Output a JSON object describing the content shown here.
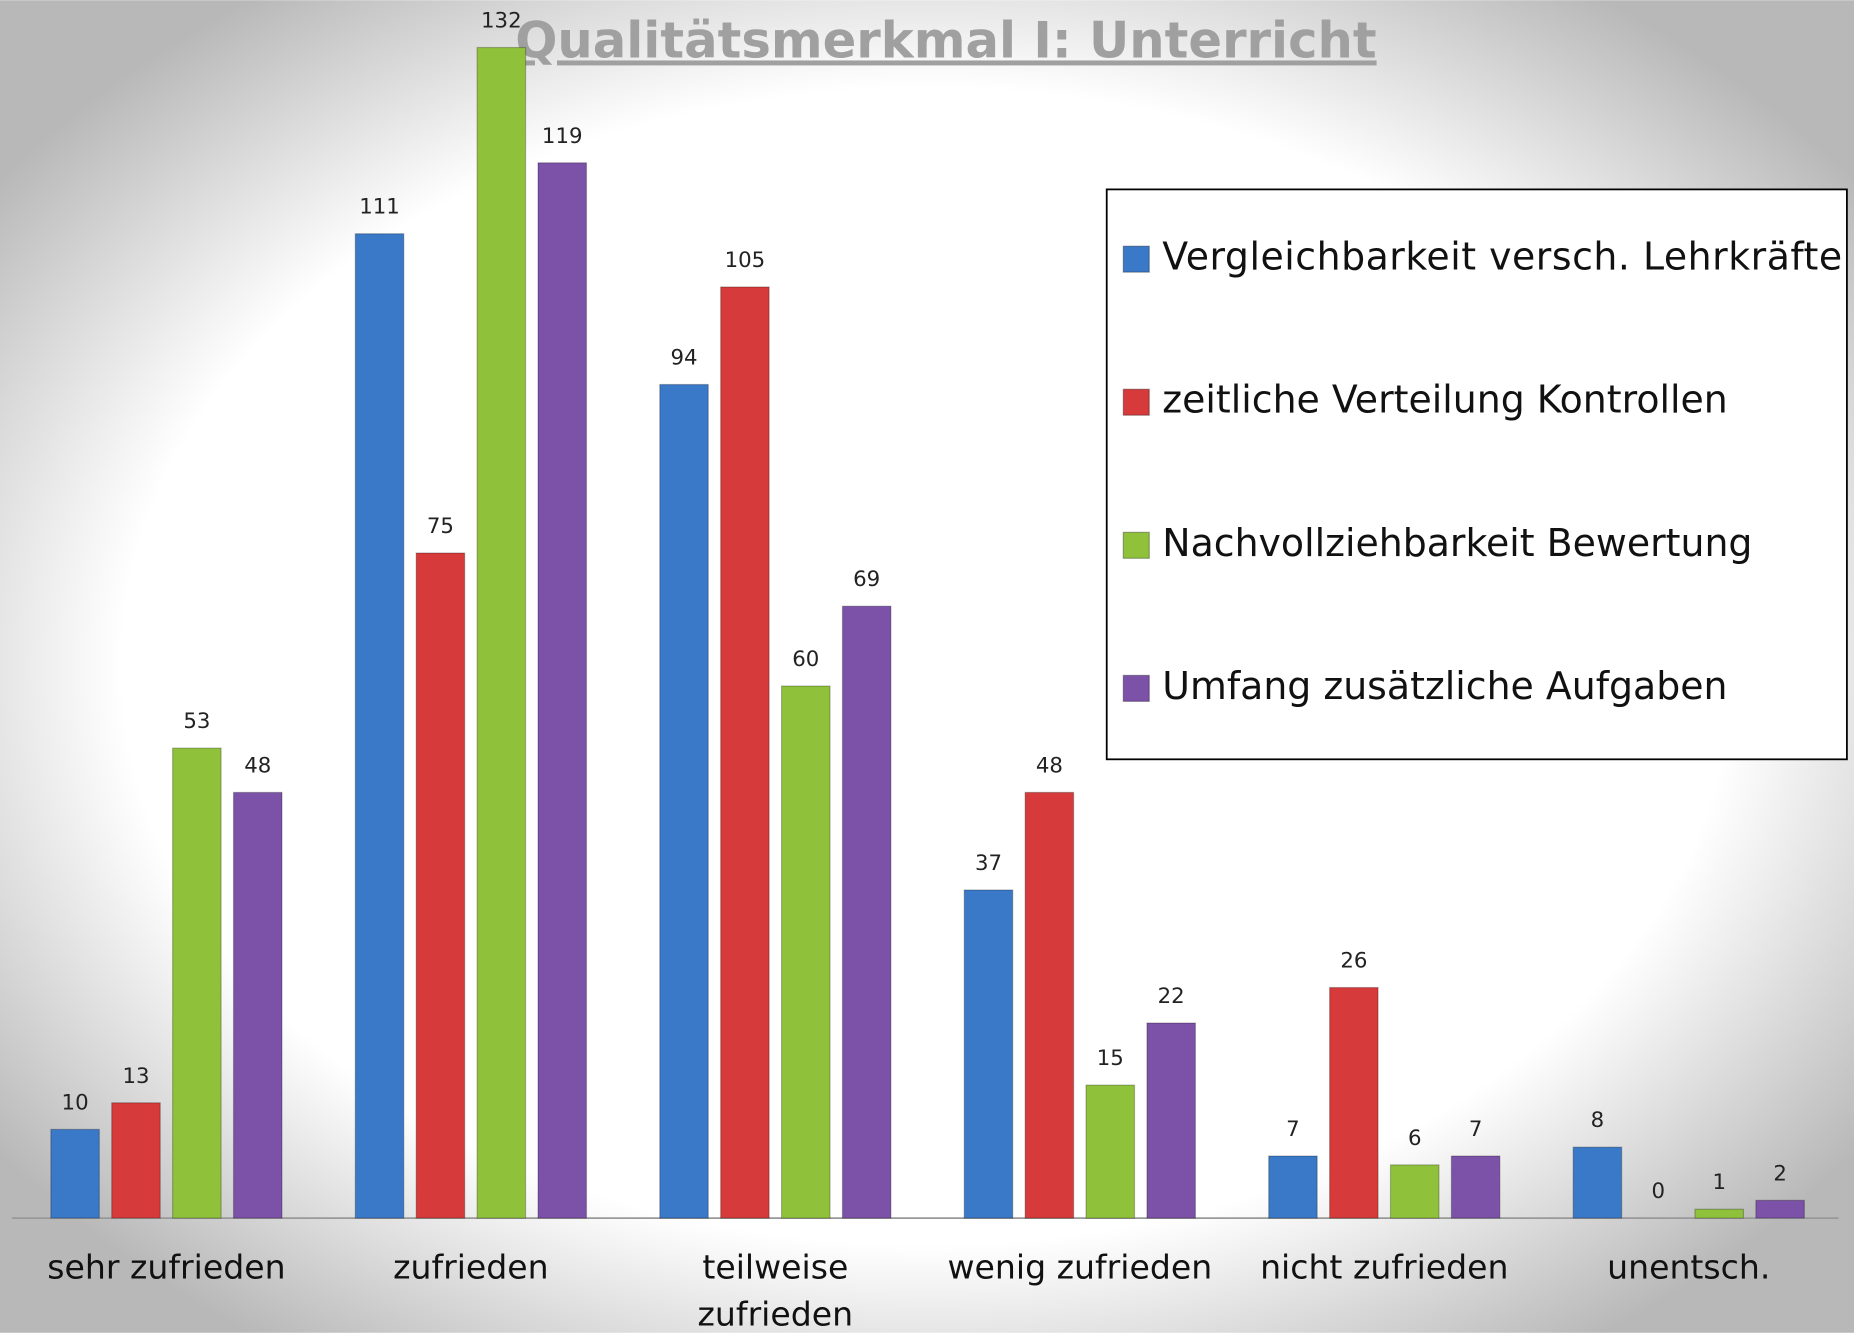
{
  "chart_data": {
    "type": "bar",
    "title": "Qualitätsmerkmal I: Unterricht",
    "categories": [
      "sehr zufrieden",
      "zufrieden",
      "teilweise zufrieden",
      "wenig zufrieden",
      "nicht zufrieden",
      "unentsch."
    ],
    "series": [
      {
        "name": "Vergleichbarkeit versch. Lehrkräfte",
        "color": "#3a78c8",
        "values": [
          10,
          111,
          94,
          37,
          7,
          8
        ]
      },
      {
        "name": "zeitliche Verteilung Kontrollen",
        "color": "#d63a3a",
        "values": [
          13,
          75,
          105,
          48,
          26,
          0
        ]
      },
      {
        "name": "Nachvollziehbarkeit Bewertung",
        "color": "#8fc23a",
        "values": [
          53,
          132,
          60,
          15,
          6,
          1
        ]
      },
      {
        "name": "Umfang zusätzliche Aufgaben",
        "color": "#7b52a8",
        "values": [
          48,
          119,
          69,
          22,
          7,
          2
        ]
      }
    ],
    "legend": "top-right"
  }
}
